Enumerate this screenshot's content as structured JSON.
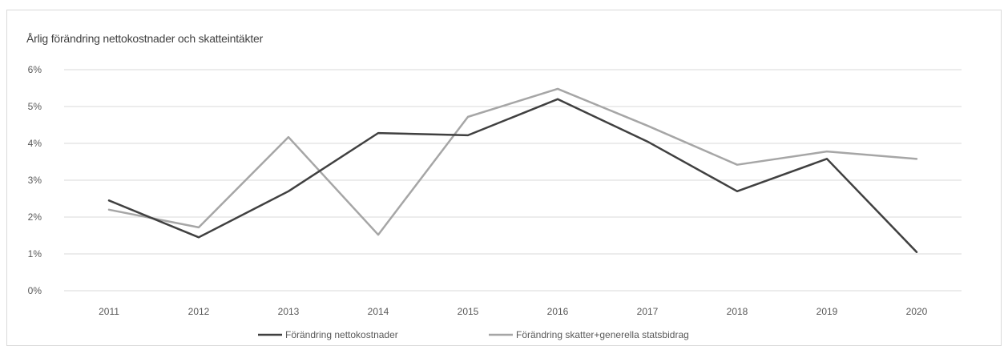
{
  "chart_data": {
    "type": "line",
    "title": "Årlig förändring nettokostnader och skatteintäkter",
    "categories": [
      "2011",
      "2012",
      "2013",
      "2014",
      "2015",
      "2016",
      "2017",
      "2018",
      "2019",
      "2020"
    ],
    "series": [
      {
        "name": "Förändring nettokostnader",
        "color": "#404040",
        "values": [
          2.45,
          1.45,
          2.7,
          4.28,
          4.22,
          5.2,
          4.05,
          2.7,
          3.58,
          1.05
        ]
      },
      {
        "name": "Förändring skatter+generella statsbidrag",
        "color": "#a6a6a6",
        "values": [
          2.2,
          1.72,
          4.17,
          1.52,
          4.72,
          5.48,
          4.48,
          3.42,
          3.78,
          3.58
        ]
      }
    ],
    "ylim": [
      0,
      6
    ],
    "yticks": [
      "0%",
      "1%",
      "2%",
      "3%",
      "4%",
      "5%",
      "6%"
    ],
    "grid": true,
    "legend": "bottom"
  }
}
